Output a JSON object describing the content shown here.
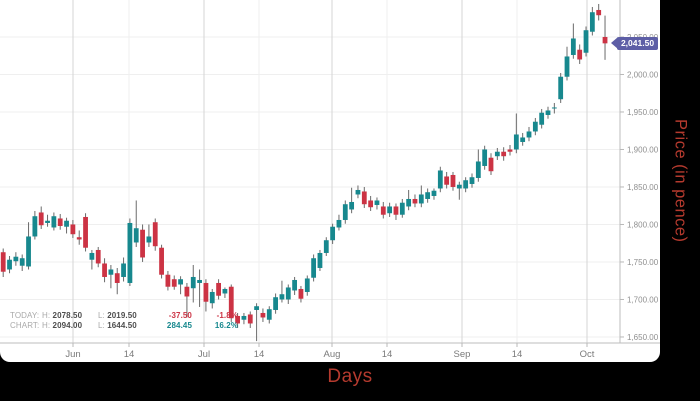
{
  "chart_data": {
    "type": "candlestick",
    "title": "",
    "xlabel": "Days",
    "ylabel": "Price (in pence)",
    "ylim": [
      1644.5,
      2099.3
    ],
    "grid": true,
    "legend_position": "bottom-left",
    "colors": {
      "up": "#17888e",
      "down": "#cc3344",
      "wick": "#6a6a6a",
      "grid_major": "#d6d6d6",
      "grid_minor": "#efefef",
      "axis": "#bdbdbd",
      "tick": "#b8b8b8",
      "y_label": "#8f8f8f",
      "x_label": "#7a7a7a",
      "badge": "#5d5ea6",
      "axis_title_red": "#b53a2e"
    },
    "y_ticks": [
      {
        "value": 2050,
        "label": "2,050.00"
      },
      {
        "value": 2000,
        "label": "2,000.00"
      },
      {
        "value": 1950,
        "label": "1,950.00"
      },
      {
        "value": 1900,
        "label": "1,900.00"
      },
      {
        "value": 1850,
        "label": "1,850.00"
      },
      {
        "value": 1800,
        "label": "1,800.00"
      },
      {
        "value": 1750,
        "label": "1,750.00"
      },
      {
        "value": 1700,
        "label": "1,700.00"
      },
      {
        "value": 1650,
        "label": "1,650.00"
      }
    ],
    "x_ticks": [
      {
        "label": "Jun",
        "x": 73,
        "major": true
      },
      {
        "label": "14",
        "x": 129,
        "major": false
      },
      {
        "label": "Jul",
        "x": 204,
        "major": true
      },
      {
        "label": "14",
        "x": 259,
        "major": false
      },
      {
        "label": "Aug",
        "x": 332,
        "major": true
      },
      {
        "label": "14",
        "x": 387,
        "major": false
      },
      {
        "label": "Sep",
        "x": 462,
        "major": true
      },
      {
        "label": "14",
        "x": 517,
        "major": false
      },
      {
        "label": "Oct",
        "x": 587,
        "major": true
      }
    ],
    "legend": {
      "rows": [
        {
          "label": "TODAY:",
          "h_label": "H:",
          "h": "2078.50",
          "l_label": "L:",
          "l": "2019.50",
          "change": "-37.50",
          "pct": "-1.8%",
          "trend": "down"
        },
        {
          "label": "CHART:",
          "h_label": "H:",
          "h": "2094.00",
          "l_label": "L:",
          "l": "1644.50",
          "change": "284.45",
          "pct": "16.2%",
          "trend": "up"
        }
      ]
    },
    "price_badge": {
      "label": "2,041.50",
      "value": 2041.5
    },
    "today": {
      "high": 2078.5,
      "low": 2019.5,
      "change": -37.5,
      "change_pct": -1.8,
      "close": 2041.5
    },
    "chart_range": {
      "high": 2094.0,
      "low": 1644.5,
      "change": 284.45,
      "change_pct": 16.2
    },
    "candle_format": [
      "open",
      "high",
      "low",
      "close"
    ],
    "candles": [
      [
        1763,
        1768,
        1730,
        1737
      ],
      [
        1740,
        1758,
        1735,
        1753
      ],
      [
        1751,
        1763,
        1745,
        1757
      ],
      [
        1745,
        1760,
        1738,
        1755
      ],
      [
        1744,
        1803,
        1740,
        1784
      ],
      [
        1784,
        1818,
        1780,
        1811
      ],
      [
        1816,
        1824,
        1794,
        1799
      ],
      [
        1802,
        1813,
        1797,
        1805
      ],
      [
        1796,
        1816,
        1792,
        1811
      ],
      [
        1808,
        1814,
        1793,
        1798
      ],
      [
        1797,
        1809,
        1788,
        1805
      ],
      [
        1800,
        1806,
        1782,
        1787
      ],
      [
        1783,
        1792,
        1773,
        1780
      ],
      [
        1810,
        1815,
        1764,
        1769
      ],
      [
        1753,
        1766,
        1740,
        1762
      ],
      [
        1766,
        1770,
        1743,
        1748
      ],
      [
        1748,
        1755,
        1723,
        1730
      ],
      [
        1733,
        1746,
        1715,
        1740
      ],
      [
        1735,
        1742,
        1707,
        1722
      ],
      [
        1730,
        1756,
        1724,
        1748
      ],
      [
        1722,
        1808,
        1718,
        1802
      ],
      [
        1776,
        1832,
        1770,
        1795
      ],
      [
        1793,
        1800,
        1750,
        1756
      ],
      [
        1776,
        1800,
        1770,
        1784
      ],
      [
        1803,
        1808,
        1765,
        1771
      ],
      [
        1769,
        1773,
        1728,
        1733
      ],
      [
        1733,
        1738,
        1712,
        1717
      ],
      [
        1727,
        1732,
        1713,
        1717
      ],
      [
        1720,
        1731,
        1707,
        1727
      ],
      [
        1717,
        1722,
        1676,
        1704
      ],
      [
        1715,
        1746,
        1696,
        1730
      ],
      [
        1722,
        1740,
        1690,
        1726
      ],
      [
        1722,
        1727,
        1684,
        1697
      ],
      [
        1695,
        1714,
        1688,
        1710
      ],
      [
        1722,
        1727,
        1700,
        1705
      ],
      [
        1708,
        1716,
        1702,
        1714
      ],
      [
        1717,
        1720,
        1670,
        1675
      ],
      [
        1678,
        1682,
        1662,
        1668
      ],
      [
        1673,
        1682,
        1667,
        1678
      ],
      [
        1680,
        1684,
        1662,
        1668
      ],
      [
        1686,
        1695,
        1644.5,
        1691
      ],
      [
        1682,
        1688,
        1670,
        1676
      ],
      [
        1673,
        1691,
        1668,
        1687
      ],
      [
        1686,
        1708,
        1681,
        1703
      ],
      [
        1700,
        1725,
        1696,
        1707
      ],
      [
        1700,
        1720,
        1694,
        1716
      ],
      [
        1712,
        1730,
        1706,
        1726
      ],
      [
        1714,
        1718,
        1696,
        1701
      ],
      [
        1710,
        1732,
        1705,
        1728
      ],
      [
        1729,
        1760,
        1724,
        1755
      ],
      [
        1742,
        1766,
        1738,
        1762
      ],
      [
        1762,
        1783,
        1758,
        1779
      ],
      [
        1779,
        1801,
        1774,
        1797
      ],
      [
        1796,
        1813,
        1792,
        1806
      ],
      [
        1806,
        1832,
        1801,
        1827
      ],
      [
        1820,
        1849,
        1815,
        1830
      ],
      [
        1840,
        1852,
        1835,
        1846
      ],
      [
        1844,
        1850,
        1822,
        1827
      ],
      [
        1832,
        1838,
        1818,
        1823
      ],
      [
        1826,
        1836,
        1820,
        1832
      ],
      [
        1824,
        1830,
        1808,
        1813
      ],
      [
        1815,
        1829,
        1810,
        1824
      ],
      [
        1824,
        1828,
        1806,
        1813
      ],
      [
        1813,
        1834,
        1809,
        1829
      ],
      [
        1824,
        1846,
        1819,
        1834
      ],
      [
        1834,
        1840,
        1823,
        1828
      ],
      [
        1828,
        1852,
        1823,
        1840
      ],
      [
        1834,
        1848,
        1829,
        1843
      ],
      [
        1838,
        1848,
        1833,
        1845
      ],
      [
        1848,
        1877,
        1843,
        1872
      ],
      [
        1864,
        1870,
        1848,
        1853
      ],
      [
        1866,
        1870,
        1845,
        1850
      ],
      [
        1848,
        1857,
        1833,
        1853
      ],
      [
        1848,
        1863,
        1843,
        1859
      ],
      [
        1854,
        1868,
        1849,
        1863
      ],
      [
        1862,
        1900,
        1857,
        1884
      ],
      [
        1878,
        1905,
        1873,
        1900
      ],
      [
        1889,
        1895,
        1866,
        1871
      ],
      [
        1891,
        1902,
        1886,
        1897
      ],
      [
        1897,
        1903,
        1885,
        1891
      ],
      [
        1900,
        1906,
        1892,
        1897
      ],
      [
        1900,
        1948,
        1895,
        1920
      ],
      [
        1910,
        1922,
        1905,
        1916
      ],
      [
        1916,
        1930,
        1911,
        1924
      ],
      [
        1924,
        1942,
        1919,
        1937
      ],
      [
        1933,
        1954,
        1928,
        1949
      ],
      [
        1946,
        1957,
        1941,
        1952
      ],
      [
        1955,
        1962,
        1948,
        1956
      ],
      [
        1967,
        2002,
        1962,
        1997
      ],
      [
        1997,
        2037,
        1992,
        2024
      ],
      [
        2026,
        2068,
        2021,
        2048
      ],
      [
        2033,
        2040,
        2014,
        2020
      ],
      [
        2029,
        2064,
        2024,
        2059
      ],
      [
        2057,
        2090,
        2052,
        2083
      ],
      [
        2086,
        2094,
        2072,
        2079
      ],
      [
        2050,
        2078.5,
        2019.5,
        2041.5
      ]
    ]
  }
}
